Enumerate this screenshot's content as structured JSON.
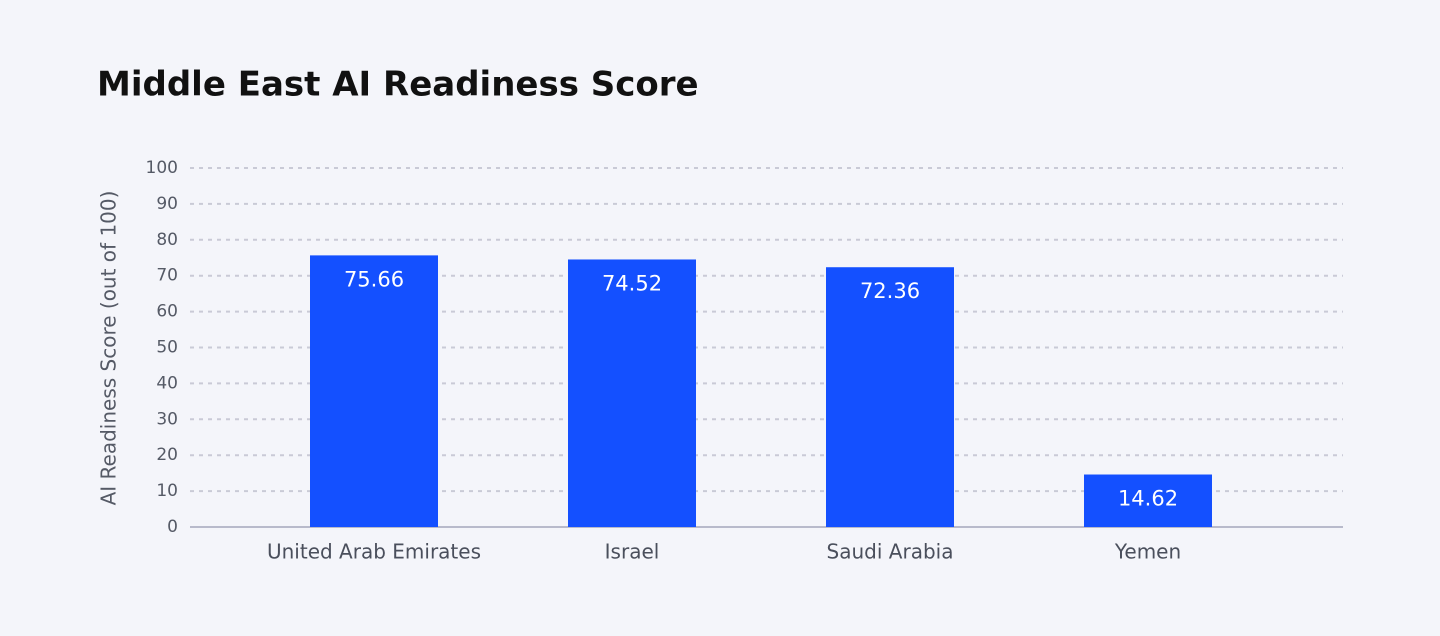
{
  "chart_data": {
    "type": "bar",
    "title": "Middle East AI Readiness Score",
    "y_label": "AI Readiness Score (out of 100)",
    "categories": [
      "United Arab Emirates",
      "Israel",
      "Saudi Arabia",
      "Yemen"
    ],
    "values": [
      75.66,
      74.52,
      72.36,
      14.62
    ],
    "color": "#1450ff",
    "ylim": [
      0,
      100
    ],
    "yticks": [
      0,
      10,
      20,
      30,
      40,
      50,
      60,
      70,
      80,
      90,
      100
    ],
    "grid": true
  }
}
